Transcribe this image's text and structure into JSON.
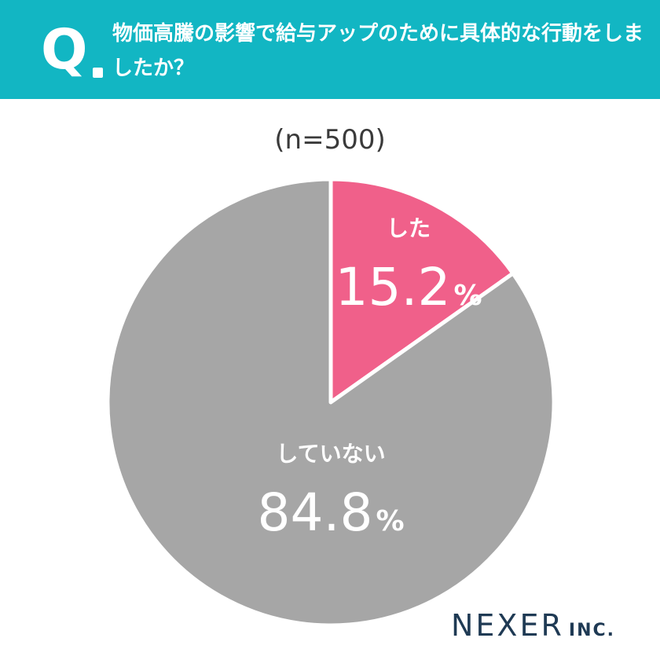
{
  "header": {
    "q_label": "Q",
    "question": "物価高騰の影響で給与アップのために具体的な行動をしましたか？",
    "bg_color": "#12b6c3"
  },
  "sample_size": "(n=500)",
  "chart_data": {
    "type": "pie",
    "slices": [
      {
        "label": "した",
        "value": 15.2,
        "display": "15.2",
        "unit": "%",
        "color": "#f0608a"
      },
      {
        "label": "していない",
        "value": 84.8,
        "display": "84.8",
        "unit": "%",
        "color": "#a6a6a6"
      }
    ],
    "start": "12 o'clock",
    "direction": "clockwise"
  },
  "logo": {
    "brand": "NEXER",
    "suffix": "INC."
  }
}
